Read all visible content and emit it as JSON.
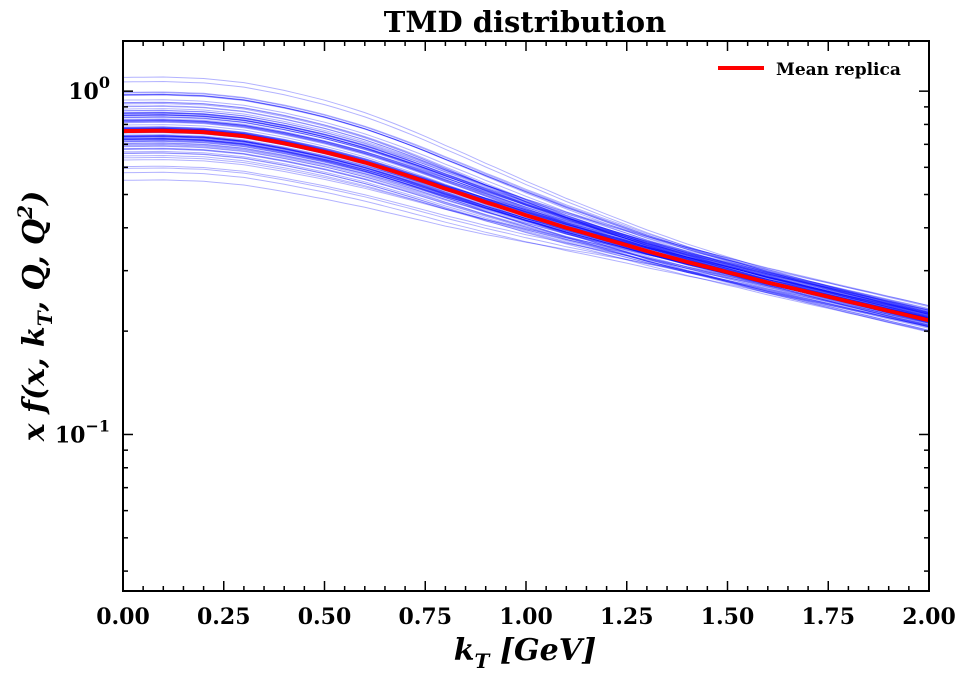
{
  "chart_data": {
    "type": "line",
    "title": "TMD distribution",
    "xlabel": "k_T [GeV]",
    "ylabel": "x f(x, k_T, Q, Q²)",
    "xlim": [
      0.0,
      2.0
    ],
    "ylim": [
      0.035,
      1.4
    ],
    "yscale": "log",
    "x_ticks": [
      "0.00",
      "0.25",
      "0.50",
      "0.75",
      "1.00",
      "1.25",
      "1.50",
      "1.75",
      "2.00"
    ],
    "y_ticks": [
      {
        "value": 1.0,
        "base": "10",
        "exp": "0"
      },
      {
        "value": 0.1,
        "base": "10",
        "exp": "−1"
      }
    ],
    "grid": false,
    "legend": {
      "position": "top-right",
      "entries": [
        "Mean replica"
      ]
    },
    "colors": {
      "mean": "#ff0000",
      "replicas": "#0000ff"
    },
    "replica_style": {
      "count": 100,
      "opacity": 0.3
    },
    "x": [
      0.0,
      0.1,
      0.2,
      0.3,
      0.4,
      0.5,
      0.6,
      0.7,
      0.8,
      0.9,
      1.0,
      1.1,
      1.2,
      1.3,
      1.4,
      1.5,
      1.6,
      1.7,
      1.8,
      1.9,
      2.0
    ],
    "series": [
      {
        "name": "Mean replica",
        "values": [
          0.765,
          0.767,
          0.76,
          0.74,
          0.705,
          0.665,
          0.62,
          0.57,
          0.52,
          0.475,
          0.435,
          0.4,
          0.37,
          0.342,
          0.318,
          0.297,
          0.277,
          0.26,
          0.244,
          0.229,
          0.215
        ]
      }
    ]
  }
}
